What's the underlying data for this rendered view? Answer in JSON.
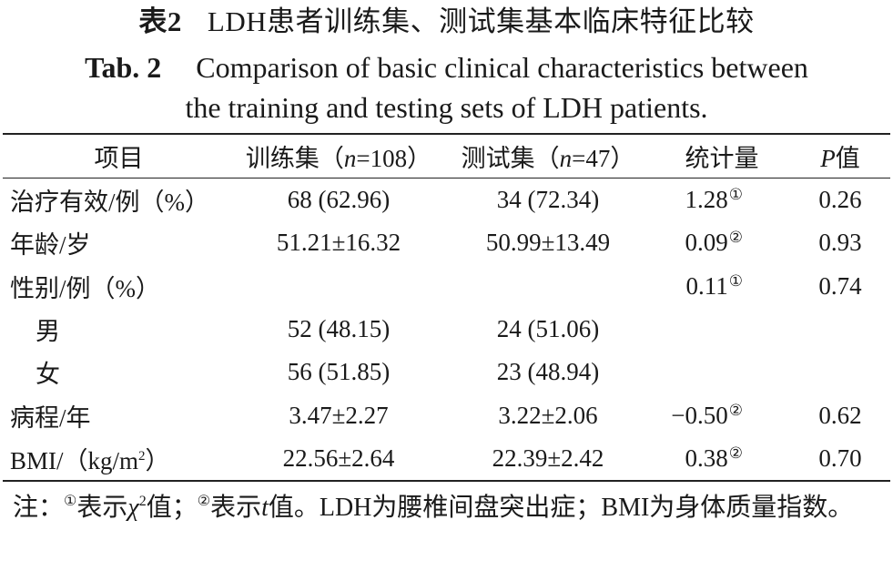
{
  "title": {
    "cn_number": "表2",
    "cn_text": "LDH患者训练集、测试集基本临床特征比较",
    "en_number": "Tab. 2",
    "en_line1": "Comparison of basic clinical characteristics between",
    "en_line2": "the training and testing sets of LDH patients."
  },
  "table": {
    "headers": {
      "item": "项目",
      "train_prefix": "训练集（",
      "train_n": "n",
      "train_suffix": "=108）",
      "test_prefix": "测试集（",
      "test_n": "n",
      "test_suffix": "=47）",
      "stat": "统计量",
      "p_letter": "P",
      "p_suffix": "值"
    },
    "rows": [
      {
        "item": "治疗有效/例（%）",
        "train": "68 (62.96)",
        "test": "34 (72.34)",
        "stat": "1.28",
        "mark": "①",
        "p": "0.26"
      },
      {
        "item": "年龄/岁",
        "train": "51.21±16.32",
        "test": "50.99±13.49",
        "stat": "0.09",
        "mark": "②",
        "p": "0.93"
      },
      {
        "item": "性别/例（%）",
        "train": "",
        "test": "",
        "stat": "0.11",
        "mark": "①",
        "p": "0.74"
      },
      {
        "item": "男",
        "train": "52 (48.15)",
        "test": "24 (51.06)",
        "stat": "",
        "mark": "",
        "p": ""
      },
      {
        "item": "女",
        "train": "56 (51.85)",
        "test": "23 (48.94)",
        "stat": "",
        "mark": "",
        "p": ""
      },
      {
        "item": "病程/年",
        "train": "3.47±2.27",
        "test": "3.22±2.06",
        "stat": "−0.50",
        "mark": "②",
        "p": "0.62"
      },
      {
        "item_prefix": "BMI/（kg/m",
        "item_sup": "2",
        "item_suffix": "）",
        "train": "22.56±2.64",
        "test": "22.39±2.42",
        "stat": "0.38",
        "mark": "②",
        "p": "0.70"
      }
    ]
  },
  "note": {
    "prefix": "注：",
    "mark1": "①",
    "text1": "表示",
    "chi": "χ",
    "chi_sup": "2",
    "text2": "值；",
    "mark2": "②",
    "text3": "表示",
    "t": "t",
    "text4": "值。LDH为腰椎间盘突出症；BMI为身体质量指数。"
  }
}
